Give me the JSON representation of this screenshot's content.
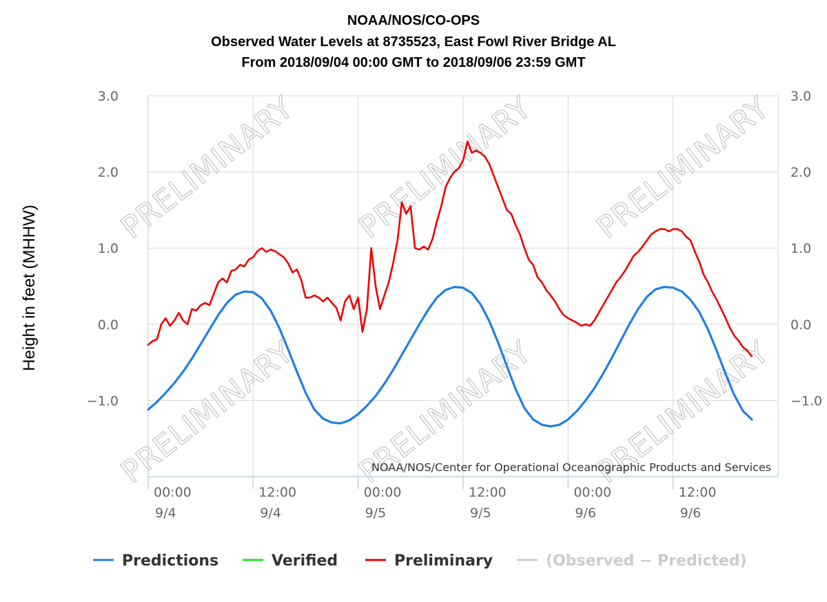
{
  "chart_data": {
    "type": "line",
    "title": [
      "NOAA/NOS/CO-OPS",
      "Observed Water Levels at 8735523, East Fowl River Bridge AL",
      "From 2018/09/04 00:00 GMT to 2018/09/06 23:59 GMT"
    ],
    "ylabel": "Height in feet (MHHW)",
    "xlabel": "",
    "ylim": [
      -2.0,
      3.0
    ],
    "xlim_hours": [
      0,
      72
    ],
    "y_ticks": [
      {
        "value": 3.0,
        "label": "3.0"
      },
      {
        "value": 2.0,
        "label": "2.0"
      },
      {
        "value": 1.0,
        "label": "1.0"
      },
      {
        "value": 0.0,
        "label": "0.0"
      },
      {
        "value": -1.0,
        "label": "−1.0"
      }
    ],
    "x_ticks": [
      {
        "hour": 0,
        "time": "00:00",
        "date": "9/4"
      },
      {
        "hour": 12,
        "time": "12:00",
        "date": "9/4"
      },
      {
        "hour": 24,
        "time": "00:00",
        "date": "9/5"
      },
      {
        "hour": 36,
        "time": "12:00",
        "date": "9/5"
      },
      {
        "hour": 48,
        "time": "00:00",
        "date": "9/6"
      },
      {
        "hour": 60,
        "time": "12:00",
        "date": "9/6"
      }
    ],
    "grid": true,
    "legend_position": "bottom",
    "credit": "NOAA/NOS/Center for Operational Oceanographic Products and Services",
    "watermark": "PRELIMINARY",
    "series": [
      {
        "name": "Predictions",
        "color": "#1e7fe6",
        "points": [
          [
            0,
            -1.12
          ],
          [
            1,
            -1.02
          ],
          [
            2,
            -0.9
          ],
          [
            3,
            -0.77
          ],
          [
            4,
            -0.62
          ],
          [
            5,
            -0.45
          ],
          [
            6,
            -0.26
          ],
          [
            7,
            -0.07
          ],
          [
            8,
            0.12
          ],
          [
            9,
            0.28
          ],
          [
            10,
            0.39
          ],
          [
            11,
            0.43
          ],
          [
            12,
            0.42
          ],
          [
            13,
            0.34
          ],
          [
            14,
            0.18
          ],
          [
            15,
            -0.05
          ],
          [
            16,
            -0.33
          ],
          [
            17,
            -0.62
          ],
          [
            18,
            -0.9
          ],
          [
            19,
            -1.12
          ],
          [
            20,
            -1.24
          ],
          [
            21,
            -1.29
          ],
          [
            22,
            -1.3
          ],
          [
            23,
            -1.26
          ],
          [
            24,
            -1.18
          ],
          [
            25,
            -1.07
          ],
          [
            26,
            -0.94
          ],
          [
            27,
            -0.78
          ],
          [
            28,
            -0.6
          ],
          [
            29,
            -0.4
          ],
          [
            30,
            -0.2
          ],
          [
            31,
            0.0
          ],
          [
            32,
            0.19
          ],
          [
            33,
            0.35
          ],
          [
            34,
            0.45
          ],
          [
            35,
            0.49
          ],
          [
            36,
            0.48
          ],
          [
            37,
            0.41
          ],
          [
            38,
            0.26
          ],
          [
            39,
            0.04
          ],
          [
            40,
            -0.24
          ],
          [
            41,
            -0.55
          ],
          [
            42,
            -0.85
          ],
          [
            43,
            -1.1
          ],
          [
            44,
            -1.25
          ],
          [
            45,
            -1.32
          ],
          [
            46,
            -1.34
          ],
          [
            47,
            -1.32
          ],
          [
            48,
            -1.25
          ],
          [
            49,
            -1.14
          ],
          [
            50,
            -1.0
          ],
          [
            51,
            -0.84
          ],
          [
            52,
            -0.65
          ],
          [
            53,
            -0.44
          ],
          [
            54,
            -0.22
          ],
          [
            55,
            0.0
          ],
          [
            56,
            0.2
          ],
          [
            57,
            0.36
          ],
          [
            58,
            0.46
          ],
          [
            59,
            0.49
          ],
          [
            60,
            0.48
          ],
          [
            61,
            0.43
          ],
          [
            62,
            0.32
          ],
          [
            63,
            0.16
          ],
          [
            64,
            -0.07
          ],
          [
            65,
            -0.35
          ],
          [
            66,
            -0.65
          ],
          [
            67,
            -0.93
          ],
          [
            68,
            -1.14
          ],
          [
            69,
            -1.25
          ]
        ]
      },
      {
        "name": "Verified",
        "color": "#22e022",
        "points": []
      },
      {
        "name": "Preliminary",
        "color": "#ee0000",
        "points": [
          [
            0,
            -0.27
          ],
          [
            0.5,
            -0.22
          ],
          [
            1,
            -0.2
          ],
          [
            1.5,
            0.0
          ],
          [
            2,
            0.08
          ],
          [
            2.5,
            -0.02
          ],
          [
            3,
            0.05
          ],
          [
            3.5,
            0.15
          ],
          [
            4,
            0.05
          ],
          [
            4.5,
            0.0
          ],
          [
            5,
            0.2
          ],
          [
            5.5,
            0.18
          ],
          [
            6,
            0.25
          ],
          [
            6.5,
            0.28
          ],
          [
            7,
            0.25
          ],
          [
            7.5,
            0.4
          ],
          [
            8,
            0.55
          ],
          [
            8.5,
            0.6
          ],
          [
            9,
            0.55
          ],
          [
            9.5,
            0.7
          ],
          [
            10,
            0.72
          ],
          [
            10.5,
            0.78
          ],
          [
            11,
            0.76
          ],
          [
            11.5,
            0.85
          ],
          [
            12,
            0.88
          ],
          [
            12.5,
            0.96
          ],
          [
            13,
            1.0
          ],
          [
            13.5,
            0.95
          ],
          [
            14,
            0.98
          ],
          [
            14.5,
            0.96
          ],
          [
            15,
            0.92
          ],
          [
            15.5,
            0.88
          ],
          [
            16,
            0.8
          ],
          [
            16.5,
            0.68
          ],
          [
            17,
            0.72
          ],
          [
            17.5,
            0.58
          ],
          [
            18,
            0.35
          ],
          [
            18.5,
            0.35
          ],
          [
            19,
            0.38
          ],
          [
            19.5,
            0.35
          ],
          [
            20,
            0.3
          ],
          [
            20.5,
            0.35
          ],
          [
            21,
            0.28
          ],
          [
            21.5,
            0.22
          ],
          [
            22,
            0.05
          ],
          [
            22.5,
            0.3
          ],
          [
            23,
            0.38
          ],
          [
            23.5,
            0.2
          ],
          [
            24,
            0.35
          ],
          [
            24.5,
            -0.1
          ],
          [
            25,
            0.2
          ],
          [
            25.5,
            1.0
          ],
          [
            26,
            0.5
          ],
          [
            26.5,
            0.2
          ],
          [
            27,
            0.38
          ],
          [
            27.5,
            0.55
          ],
          [
            28,
            0.8
          ],
          [
            28.5,
            1.1
          ],
          [
            29,
            1.6
          ],
          [
            29.5,
            1.45
          ],
          [
            30,
            1.55
          ],
          [
            30.5,
            1.0
          ],
          [
            31,
            0.98
          ],
          [
            31.5,
            1.02
          ],
          [
            32,
            0.98
          ],
          [
            32.5,
            1.12
          ],
          [
            33,
            1.35
          ],
          [
            33.5,
            1.55
          ],
          [
            34,
            1.8
          ],
          [
            34.5,
            1.92
          ],
          [
            35,
            2.0
          ],
          [
            35.5,
            2.05
          ],
          [
            36,
            2.15
          ],
          [
            36.5,
            2.4
          ],
          [
            37,
            2.25
          ],
          [
            37.5,
            2.28
          ],
          [
            38,
            2.25
          ],
          [
            38.5,
            2.2
          ],
          [
            39,
            2.1
          ],
          [
            39.5,
            1.95
          ],
          [
            40,
            1.8
          ],
          [
            40.5,
            1.65
          ],
          [
            41,
            1.5
          ],
          [
            41.5,
            1.45
          ],
          [
            42,
            1.3
          ],
          [
            42.5,
            1.18
          ],
          [
            43,
            1.0
          ],
          [
            43.5,
            0.85
          ],
          [
            44,
            0.78
          ],
          [
            44.5,
            0.62
          ],
          [
            45,
            0.55
          ],
          [
            45.5,
            0.45
          ],
          [
            46,
            0.38
          ],
          [
            46.5,
            0.3
          ],
          [
            47,
            0.2
          ],
          [
            47.5,
            0.12
          ],
          [
            48,
            0.08
          ],
          [
            48.5,
            0.05
          ],
          [
            49,
            0.02
          ],
          [
            49.5,
            -0.02
          ],
          [
            50,
            0.0
          ],
          [
            50.5,
            -0.02
          ],
          [
            51,
            0.05
          ],
          [
            51.5,
            0.15
          ],
          [
            52,
            0.25
          ],
          [
            52.5,
            0.35
          ],
          [
            53,
            0.45
          ],
          [
            53.5,
            0.55
          ],
          [
            54,
            0.62
          ],
          [
            54.5,
            0.7
          ],
          [
            55,
            0.8
          ],
          [
            55.5,
            0.9
          ],
          [
            56,
            0.95
          ],
          [
            56.5,
            1.02
          ],
          [
            57,
            1.1
          ],
          [
            57.5,
            1.18
          ],
          [
            58,
            1.22
          ],
          [
            58.5,
            1.25
          ],
          [
            59,
            1.25
          ],
          [
            59.5,
            1.22
          ],
          [
            60,
            1.25
          ],
          [
            60.5,
            1.25
          ],
          [
            61,
            1.22
          ],
          [
            61.5,
            1.15
          ],
          [
            62,
            1.1
          ],
          [
            62.5,
            0.95
          ],
          [
            63,
            0.82
          ],
          [
            63.5,
            0.65
          ],
          [
            64,
            0.55
          ],
          [
            64.5,
            0.42
          ],
          [
            65,
            0.32
          ],
          [
            65.5,
            0.2
          ],
          [
            66,
            0.08
          ],
          [
            66.5,
            -0.05
          ],
          [
            67,
            -0.15
          ],
          [
            67.5,
            -0.22
          ],
          [
            68,
            -0.3
          ],
          [
            68.5,
            -0.35
          ],
          [
            69,
            -0.42
          ]
        ]
      },
      {
        "name": "(Observed − Predicted)",
        "color": "#cccccc",
        "points": []
      }
    ]
  }
}
